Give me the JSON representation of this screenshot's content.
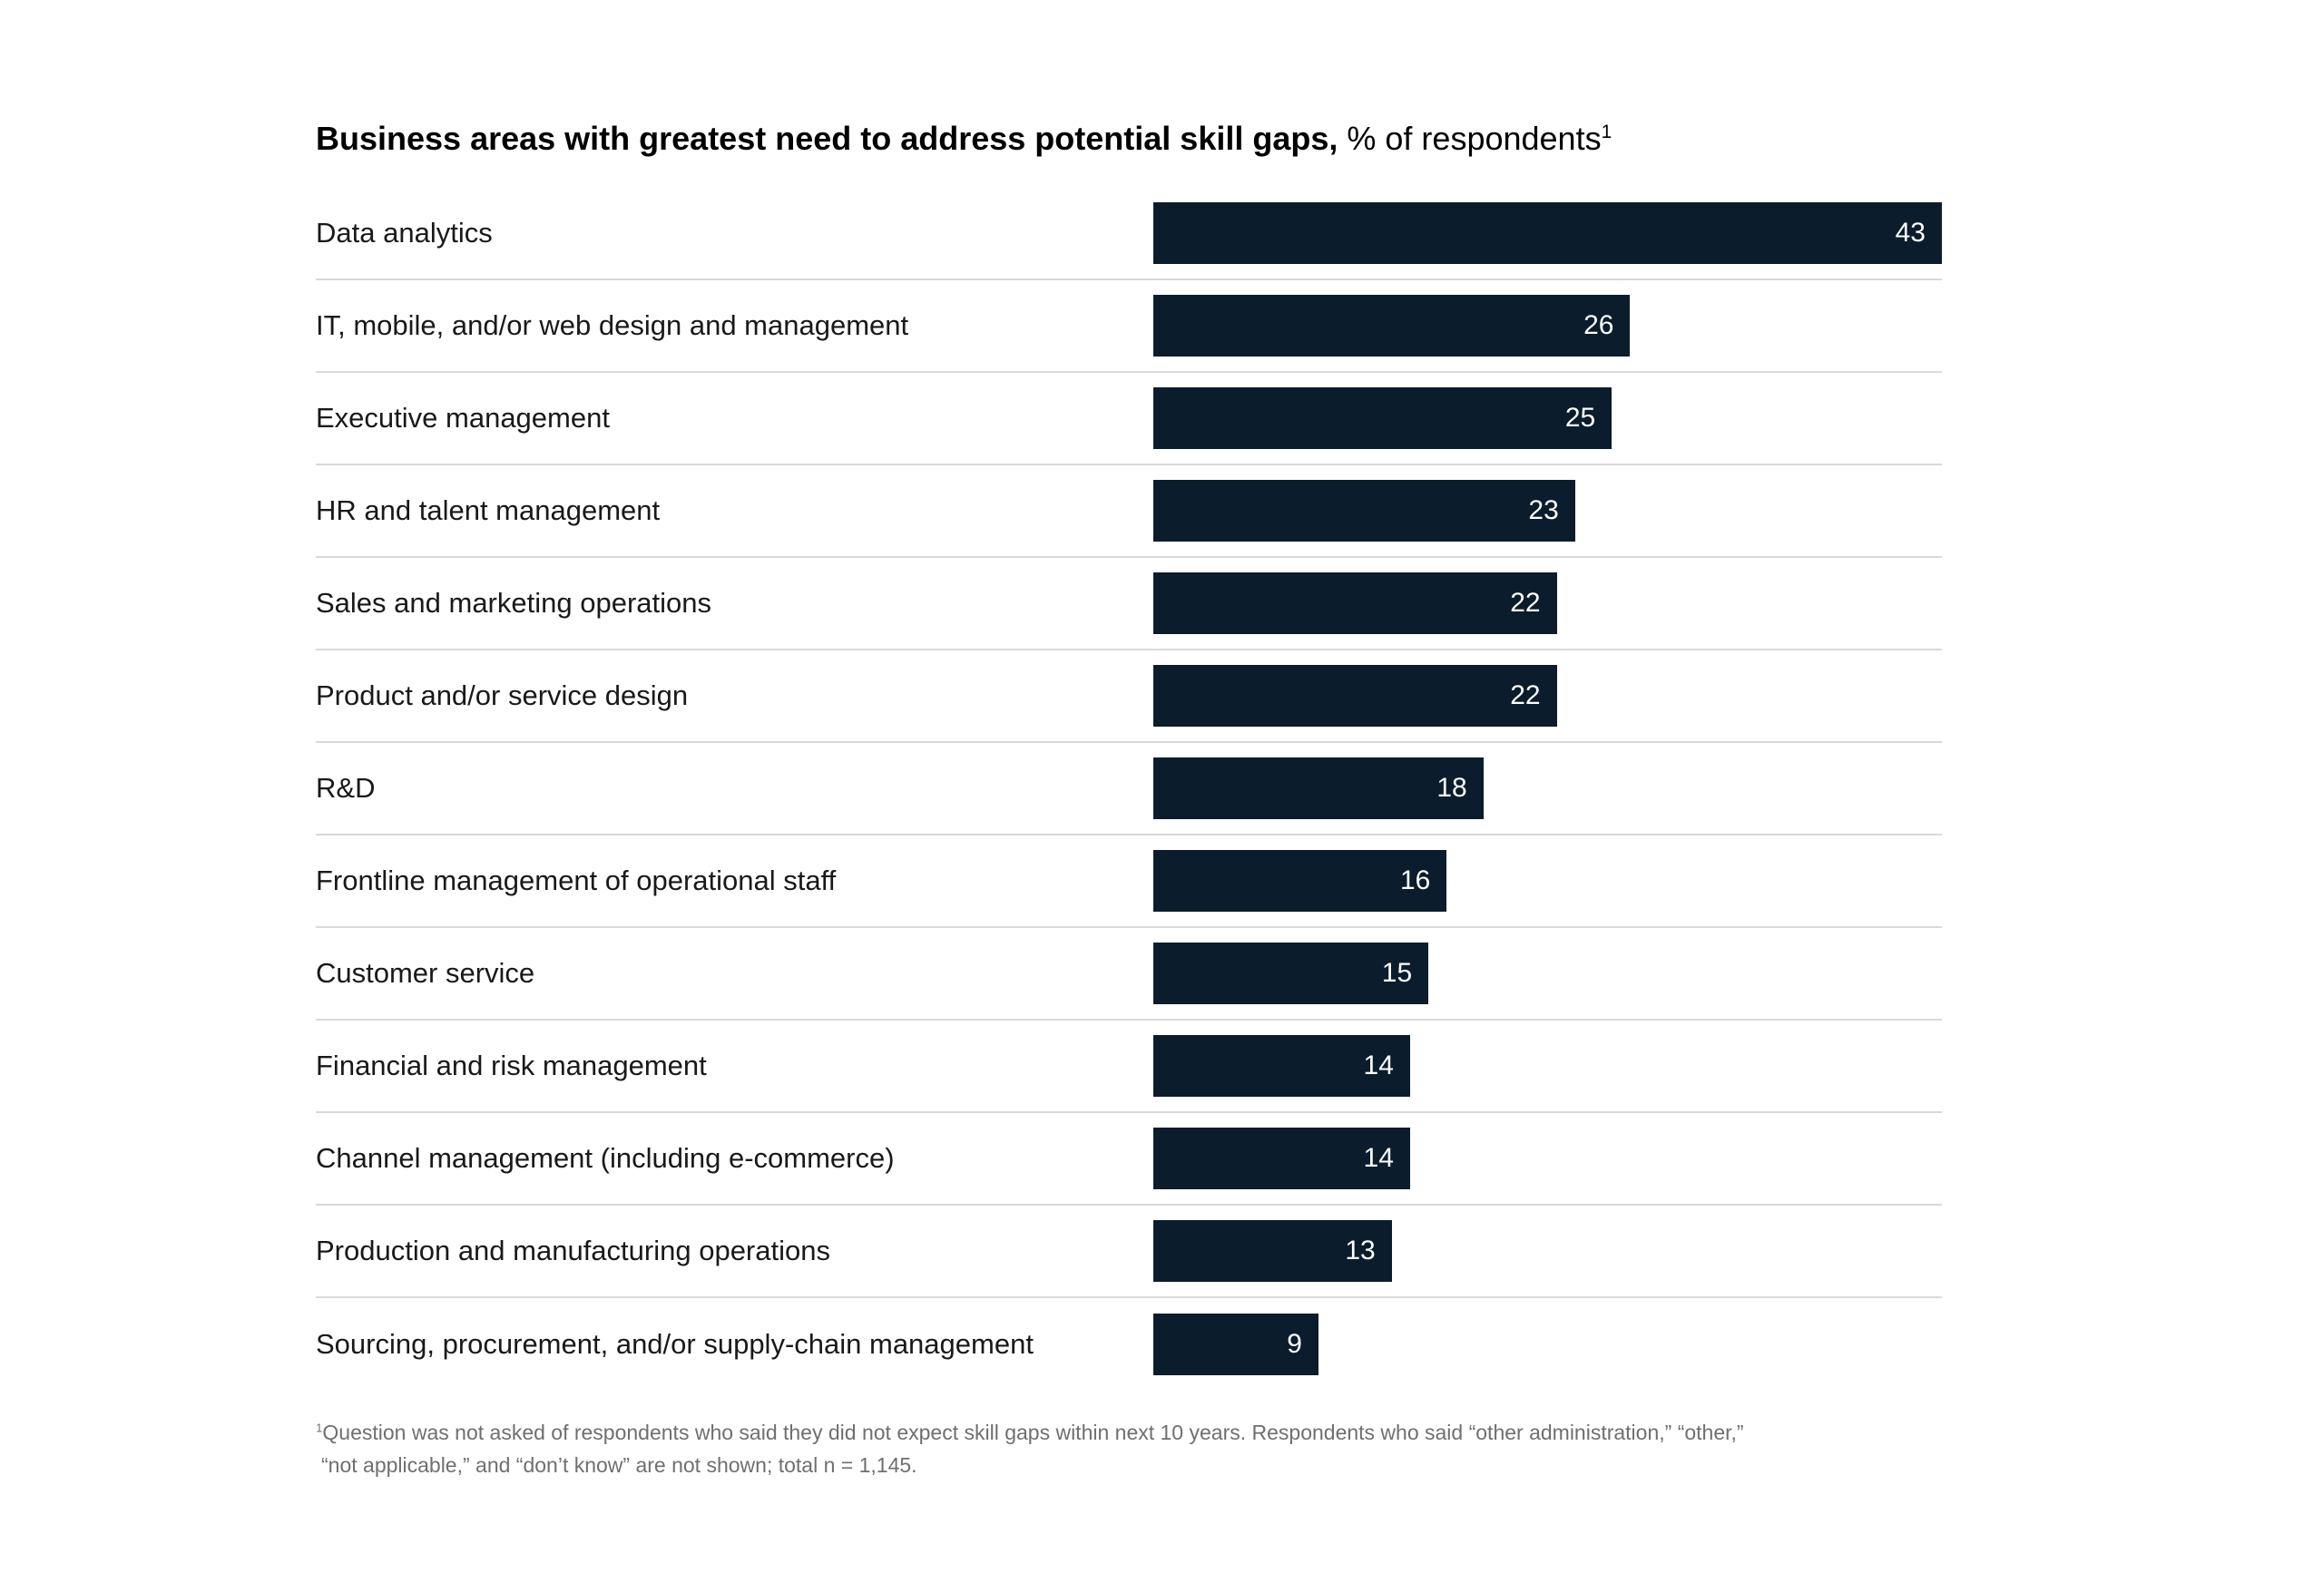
{
  "title": {
    "bold": "Business areas with greatest need to address potential skill gaps,",
    "regular": "% of respondents",
    "superscript": "1"
  },
  "chart_data": {
    "type": "bar",
    "orientation": "horizontal",
    "title": "Business areas with greatest need to address potential skill gaps, % of respondents",
    "xlabel": "",
    "ylabel": "",
    "xlim": [
      0,
      43
    ],
    "grid": "row-dividers",
    "legend": "none",
    "value_labels": "inside-end",
    "bar_color": "#0b1c2c",
    "value_label_color": "#ffffff",
    "divider_color": "#d9d9d9",
    "categories": [
      "Data analytics",
      "IT, mobile, and/or web design and management",
      "Executive management",
      "HR and talent management",
      "Sales and marketing operations",
      "Product and/or service design",
      "R&D",
      "Frontline management of operational staff",
      "Customer service",
      "Financial and risk management",
      "Channel management (including e-commerce)",
      "Production and manufacturing operations",
      "Sourcing, procurement, and/or supply-chain management"
    ],
    "values": [
      43,
      26,
      25,
      23,
      22,
      22,
      18,
      16,
      15,
      14,
      14,
      13,
      9
    ]
  },
  "footnote": {
    "superscript": "1",
    "lines": [
      "Question was not asked of respondents who said they did not expect skill gaps within next 10 years. Respondents who said “other administration,” “other,”",
      "“not applicable,” and “don’t know” are not shown; total n = 1,145."
    ]
  }
}
